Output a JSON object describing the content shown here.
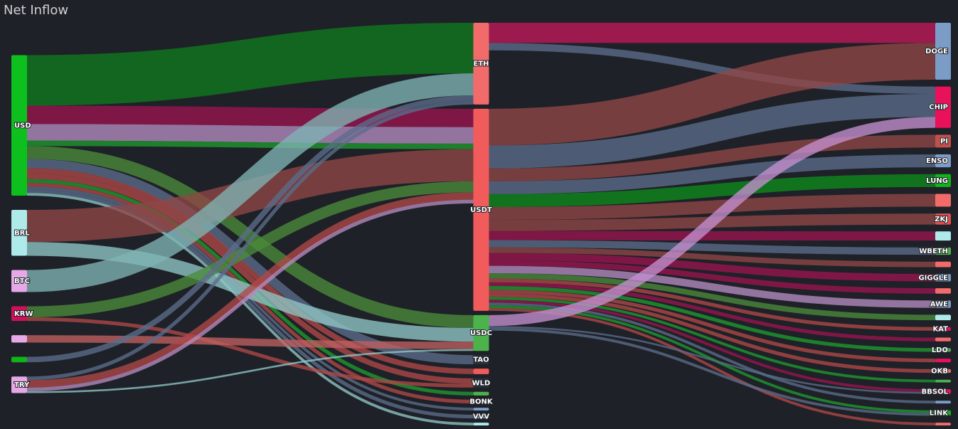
{
  "title": "Net Inflow",
  "nodes": [
    {
      "label": "USD",
      "color": "#0dc01e"
    },
    {
      "label": "BRL",
      "color": "#aeeaea"
    },
    {
      "label": "BTC",
      "color": "#e6a8e6"
    },
    {
      "label": "KRW",
      "color": "#d1105a"
    },
    {
      "label": null,
      "color": "#e6a8e6"
    },
    {
      "label": null,
      "color": "#10b418"
    },
    {
      "label": "TRY",
      "color": "#e6a8e6"
    },
    {
      "label": "ETH",
      "color": "#f26b6b"
    },
    {
      "label": "USDT",
      "color": "#f25b5b"
    },
    {
      "label": "USDC",
      "color": "#4cb34c"
    },
    {
      "label": "TAO",
      "color": "#2a2f3a"
    },
    {
      "label": null,
      "color": "#f25b5b"
    },
    {
      "label": "WLD",
      "color": "#2a2f3a"
    },
    {
      "label": null,
      "color": "#4cb34c"
    },
    {
      "label": "BONK",
      "color": "#2a2f3a"
    },
    {
      "label": null,
      "color": "#7a9cc6"
    },
    {
      "label": "VVV",
      "color": "#7a9cc6"
    },
    {
      "label": null,
      "color": "#aeeaea"
    },
    {
      "label": "DOGE",
      "color": "#7a9cc6"
    },
    {
      "label": "CHIP",
      "color": "#e8115a"
    },
    {
      "label": "PI",
      "color": "#c0504d"
    },
    {
      "label": "ENSO",
      "color": "#7a9cc6"
    },
    {
      "label": "LUNG",
      "color": "#10b418"
    },
    {
      "label": null,
      "color": "#f26b6b"
    },
    {
      "label": "ZKJ",
      "color": "#e05050"
    },
    {
      "label": null,
      "color": "#aeeaea"
    },
    {
      "label": "WBETH",
      "color": "#4cb34c"
    },
    {
      "label": null,
      "color": "#f26b6b"
    },
    {
      "label": "GIGGLE",
      "color": "#7a9cc6"
    },
    {
      "label": null,
      "color": "#f26b6b"
    },
    {
      "label": "AWE",
      "color": "#7a9cc6"
    },
    {
      "label": null,
      "color": "#aeeaea"
    },
    {
      "label": "KAT",
      "color": "#e8115a"
    },
    {
      "label": null,
      "color": "#f26b6b"
    },
    {
      "label": "LDO",
      "color": "#4cb34c"
    },
    {
      "label": null,
      "color": "#e8115a"
    },
    {
      "label": "OKB",
      "color": "#f26b6b"
    },
    {
      "label": null,
      "color": "#4cb34c"
    },
    {
      "label": "BBSOL",
      "color": "#e8115a"
    },
    {
      "label": null,
      "color": "#7a9cc6"
    },
    {
      "label": "LINK",
      "color": "#10b418"
    },
    {
      "label": null,
      "color": "#f26b6b"
    }
  ],
  "links": [
    {
      "source": 0,
      "target": 7,
      "value": 55,
      "color": "#0f7a1e"
    },
    {
      "source": 0,
      "target": 8,
      "value": 20,
      "color": "#9b1550"
    },
    {
      "source": 0,
      "target": 8,
      "value": 18,
      "color": "#b48cc0"
    },
    {
      "source": 0,
      "target": 9,
      "value": 14,
      "color": "#4a8a3a"
    },
    {
      "source": 0,
      "target": 8,
      "value": 6,
      "color": "#1f9a2e"
    },
    {
      "source": 0,
      "target": 10,
      "value": 10,
      "color": "#5b6d8a"
    },
    {
      "source": 0,
      "target": 12,
      "value": 6,
      "color": "#b04848"
    },
    {
      "source": 0,
      "target": 13,
      "value": 4,
      "color": "#1f9a2e"
    },
    {
      "source": 0,
      "target": 14,
      "value": 4,
      "color": "#b04848"
    },
    {
      "source": 0,
      "target": 15,
      "value": 3,
      "color": "#5b6d8a"
    },
    {
      "source": 0,
      "target": 16,
      "value": 4,
      "color": "#5b6d8a"
    },
    {
      "source": 0,
      "target": 17,
      "value": 3,
      "color": "#8fc6c6"
    },
    {
      "source": 0,
      "target": 11,
      "value": 6,
      "color": "#b04848"
    },
    {
      "source": 1,
      "target": 8,
      "value": 35,
      "color": "#8f4747"
    },
    {
      "source": 1,
      "target": 9,
      "value": 15,
      "color": "#8fc6c6"
    },
    {
      "source": 2,
      "target": 7,
      "value": 24,
      "color": "#7fb3b3"
    },
    {
      "source": 3,
      "target": 8,
      "value": 12,
      "color": "#4a8a3a"
    },
    {
      "source": 3,
      "target": 12,
      "value": 4,
      "color": "#b04848"
    },
    {
      "source": 4,
      "target": 9,
      "value": 8,
      "color": "#c06060"
    },
    {
      "source": 5,
      "target": 7,
      "value": 6,
      "color": "#5b6d8a"
    },
    {
      "source": 6,
      "target": 7,
      "value": 4,
      "color": "#5b6d8a"
    },
    {
      "source": 6,
      "target": 8,
      "value": 8,
      "color": "#b04848"
    },
    {
      "source": 6,
      "target": 8,
      "value": 4,
      "color": "#b48cc0"
    },
    {
      "source": 6,
      "target": 9,
      "value": 2,
      "color": "#8fc6c6"
    },
    {
      "source": 7,
      "target": 18,
      "value": 22,
      "color": "#c0185a"
    },
    {
      "source": 7,
      "target": 19,
      "value": 8,
      "color": "#5b6d8a"
    },
    {
      "source": 8,
      "target": 18,
      "value": 40,
      "color": "#8f4747"
    },
    {
      "source": 8,
      "target": 19,
      "value": 25,
      "color": "#5b6d8a"
    },
    {
      "source": 8,
      "target": 20,
      "value": 14,
      "color": "#8f4747"
    },
    {
      "source": 8,
      "target": 21,
      "value": 14,
      "color": "#5b6d8a"
    },
    {
      "source": 8,
      "target": 22,
      "value": 14,
      "color": "#0f8a1e"
    },
    {
      "source": 8,
      "target": 23,
      "value": 14,
      "color": "#8f4747"
    },
    {
      "source": 8,
      "target": 24,
      "value": 12,
      "color": "#8f4747"
    },
    {
      "source": 8,
      "target": 25,
      "value": 10,
      "color": "#9b1550"
    },
    {
      "source": 8,
      "target": 26,
      "value": 8,
      "color": "#5b6d8a"
    },
    {
      "source": 8,
      "target": 27,
      "value": 6,
      "color": "#8f4747"
    },
    {
      "source": 8,
      "target": 28,
      "value": 8,
      "color": "#9b1550"
    },
    {
      "source": 8,
      "target": 29,
      "value": 6,
      "color": "#9b1550"
    },
    {
      "source": 8,
      "target": 30,
      "value": 8,
      "color": "#b48cc0"
    },
    {
      "source": 8,
      "target": 31,
      "value": 6,
      "color": "#4a8a3a"
    },
    {
      "source": 8,
      "target": 32,
      "value": 4,
      "color": "#b04848"
    },
    {
      "source": 8,
      "target": 33,
      "value": 4,
      "color": "#9b1550"
    },
    {
      "source": 8,
      "target": 34,
      "value": 4,
      "color": "#1f9a2e"
    },
    {
      "source": 8,
      "target": 35,
      "value": 4,
      "color": "#b04848"
    },
    {
      "source": 8,
      "target": 36,
      "value": 4,
      "color": "#b04848"
    },
    {
      "source": 8,
      "target": 37,
      "value": 3,
      "color": "#1f9a2e"
    },
    {
      "source": 8,
      "target": 38,
      "value": 3,
      "color": "#9b1550"
    },
    {
      "source": 8,
      "target": 39,
      "value": 3,
      "color": "#5b6d8a"
    },
    {
      "source": 8,
      "target": 40,
      "value": 3,
      "color": "#1f9a2e"
    },
    {
      "source": 8,
      "target": 41,
      "value": 3,
      "color": "#b04848"
    },
    {
      "source": 9,
      "target": 19,
      "value": 12,
      "color": "#c48fcf"
    },
    {
      "source": 9,
      "target": 40,
      "value": 3,
      "color": "#5b6d8a"
    },
    {
      "source": 9,
      "target": 38,
      "value": 2,
      "color": "#5b6d8a"
    }
  ]
}
